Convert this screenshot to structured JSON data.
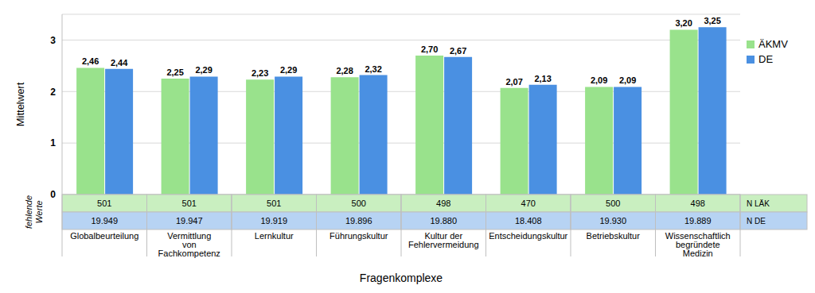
{
  "chart_data": {
    "type": "bar",
    "y_label": "Mittelwert",
    "x_label": "Fragenkomplexe",
    "categories": [
      "Globalbeurteilung",
      "Vermittlung von Fachkompetenz",
      "Lernkultur",
      "Führungskultur",
      "Kultur der Fehlervermeidung",
      "Entscheidungskultur",
      "Betriebskultur",
      "Wissenschaftlich begründete Medizin"
    ],
    "series": [
      {
        "name": "ÄKMV",
        "color": "#99e28c",
        "values": [
          2.46,
          2.25,
          2.23,
          2.28,
          2.7,
          2.07,
          2.09,
          3.2
        ],
        "value_labels": [
          "2,46",
          "2,25",
          "2,23",
          "2,28",
          "2,70",
          "2,07",
          "2,09",
          "3,20"
        ]
      },
      {
        "name": "DE",
        "color": "#4a90e2",
        "values": [
          2.44,
          2.29,
          2.29,
          2.32,
          2.67,
          2.13,
          2.09,
          3.25
        ],
        "value_labels": [
          "2,44",
          "2,29",
          "2,29",
          "2,32",
          "2,67",
          "2,13",
          "2,09",
          "3,25"
        ]
      }
    ],
    "ylim": [
      0,
      3.5
    ],
    "yticks": [
      0,
      1,
      2,
      3
    ],
    "grid": true,
    "legend": "right",
    "data_labels": true,
    "table": {
      "title": "fehlende Werte",
      "rows": [
        {
          "name": "N LÄK",
          "color": "#c9efc0",
          "values": [
            501,
            501,
            501,
            500,
            498,
            470,
            500,
            498
          ]
        },
        {
          "name": "N DE",
          "color": "#b7d3f3",
          "values": [
            19949,
            19947,
            19919,
            19896,
            19880,
            18408,
            19930,
            19889
          ],
          "value_labels": [
            "19.949",
            "19.947",
            "19.919",
            "19.896",
            "19.880",
            "18.408",
            "19.930",
            "19.889"
          ]
        }
      ]
    }
  }
}
